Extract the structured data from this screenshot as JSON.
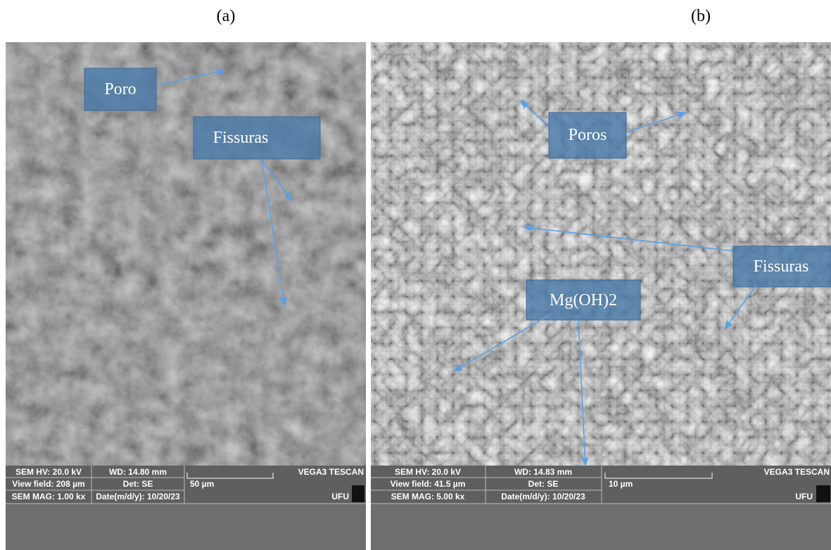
{
  "panels": [
    {
      "label": "(a)",
      "annotations": [
        "Poro",
        "Fissuras"
      ],
      "info": {
        "hv": "SEM HV: 20.0 kV",
        "wd": "WD: 14.80 mm",
        "brand": "VEGA3 TESCAN",
        "view_field": "View field: 208 µm",
        "det": "Det: SE",
        "scale": "50 µm",
        "mag": "SEM MAG: 1.00 kx",
        "date": "Date(m/d/y): 10/20/23",
        "org": "UFU"
      }
    },
    {
      "label": "(b)",
      "annotations": [
        "Poros",
        "Fissuras",
        "Mg(OH)2"
      ],
      "info": {
        "hv": "SEM HV: 20.0 kV",
        "wd": "WD: 14.83 mm",
        "brand": "VEGA3 TESCAN",
        "view_field": "View field: 41.5 µm",
        "det": "Det: SE",
        "scale": "10 µm",
        "mag": "SEM MAG: 5.00 kx",
        "date": "Date(m/d/y): 10/20/23",
        "org": "UFU"
      }
    }
  ]
}
